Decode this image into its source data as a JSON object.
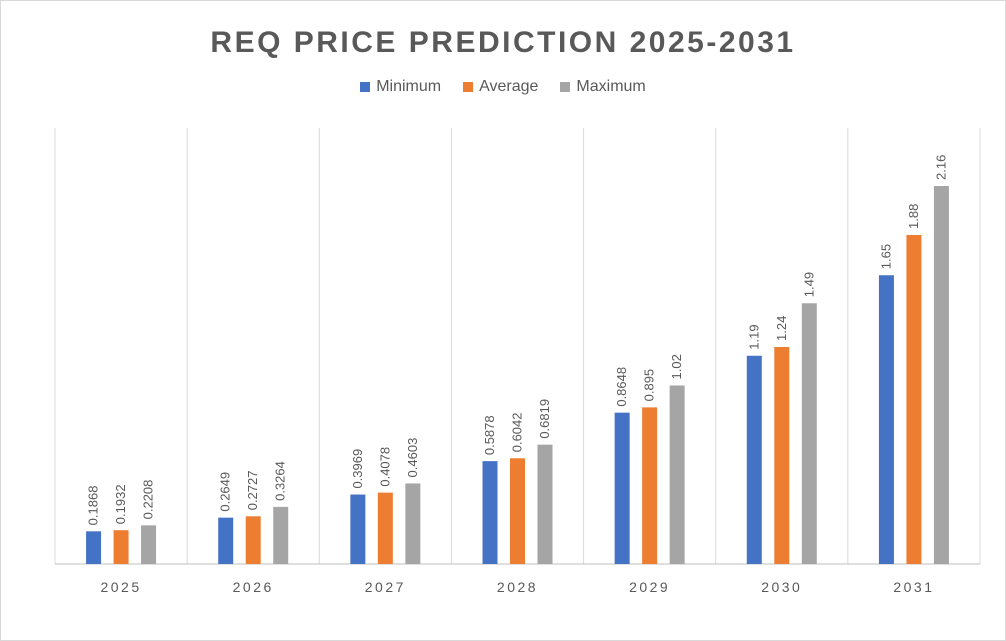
{
  "chart_data": {
    "type": "bar",
    "title": "REQ PRICE PREDICTION 2025-2031",
    "categories": [
      "2025",
      "2026",
      "2027",
      "2028",
      "2029",
      "2030",
      "2031"
    ],
    "series": [
      {
        "name": "Minimum",
        "color": "#4472c4",
        "values": [
          0.1868,
          0.2649,
          0.3969,
          0.5878,
          0.8648,
          1.19,
          1.65
        ]
      },
      {
        "name": "Average",
        "color": "#ed7d31",
        "values": [
          0.1932,
          0.2727,
          0.4078,
          0.6042,
          0.895,
          1.24,
          1.88
        ]
      },
      {
        "name": "Maximum",
        "color": "#a5a5a5",
        "values": [
          0.2208,
          0.3264,
          0.4603,
          0.6819,
          1.02,
          1.49,
          2.16
        ]
      }
    ],
    "data_labels": [
      [
        "0.1868",
        "0.2649",
        "0.3969",
        "0.5878",
        "0.8648",
        "1.19",
        "1.65"
      ],
      [
        "0.1932",
        "0.2727",
        "0.4078",
        "0.6042",
        "0.895",
        "1.24",
        "1.88"
      ],
      [
        "0.2208",
        "0.3264",
        "0.4603",
        "0.6819",
        "1.02",
        "1.49",
        "2.16"
      ]
    ],
    "ylim": [
      0,
      2.16
    ],
    "legend_position": "top",
    "grid": "vertical category separators"
  }
}
